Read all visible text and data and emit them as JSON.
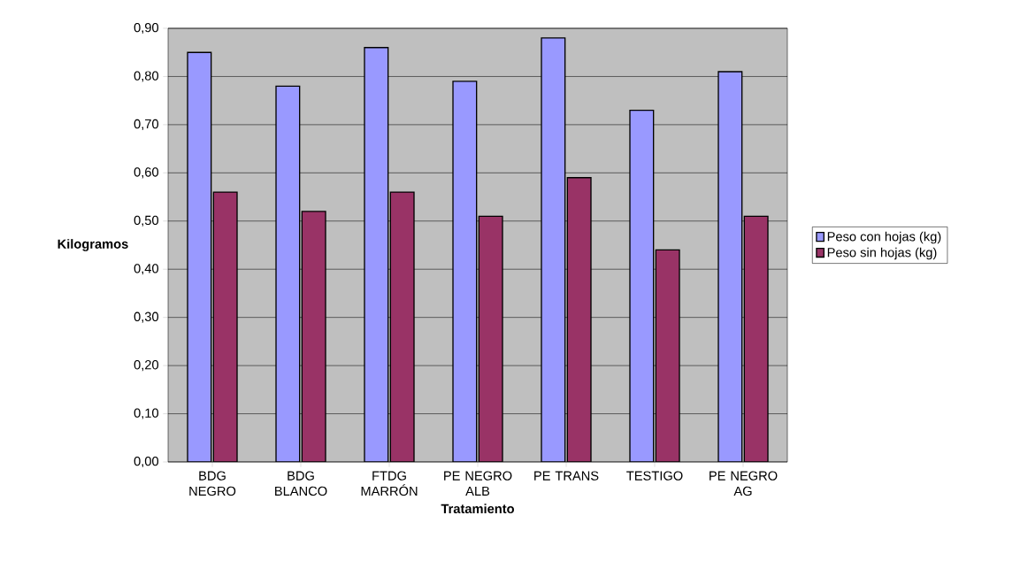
{
  "chart_data": {
    "type": "bar",
    "xlabel": "Tratamiento",
    "ylabel": "Kilogramos",
    "categories": [
      "BDG NEGRO",
      "BDG BLANCO",
      "FTDG MARRÓN",
      "PE NEGRO ALB",
      "PE TRANS",
      "TESTIGO",
      "PE NEGRO AG"
    ],
    "series": [
      {
        "name": "Peso con hojas (kg)",
        "color": "#9999ff",
        "values": [
          0.85,
          0.78,
          0.86,
          0.79,
          0.88,
          0.73,
          0.81
        ]
      },
      {
        "name": "Peso sin hojas (kg)",
        "color": "#993366",
        "values": [
          0.56,
          0.52,
          0.56,
          0.51,
          0.59,
          0.44,
          0.51
        ]
      }
    ],
    "ylim": [
      0,
      0.9
    ],
    "yticks": [
      {
        "value": 0,
        "label": "0,00"
      },
      {
        "value": 0.1,
        "label": "0,10"
      },
      {
        "value": 0.2,
        "label": "0,20"
      },
      {
        "value": 0.3,
        "label": "0,30"
      },
      {
        "value": 0.4,
        "label": "0,40"
      },
      {
        "value": 0.5,
        "label": "0,50"
      },
      {
        "value": 0.6,
        "label": "0,60"
      },
      {
        "value": 0.7,
        "label": "0,70"
      },
      {
        "value": 0.8,
        "label": "0,80"
      },
      {
        "value": 0.9,
        "label": "0,90"
      }
    ],
    "grid": "y",
    "legend": "right"
  }
}
